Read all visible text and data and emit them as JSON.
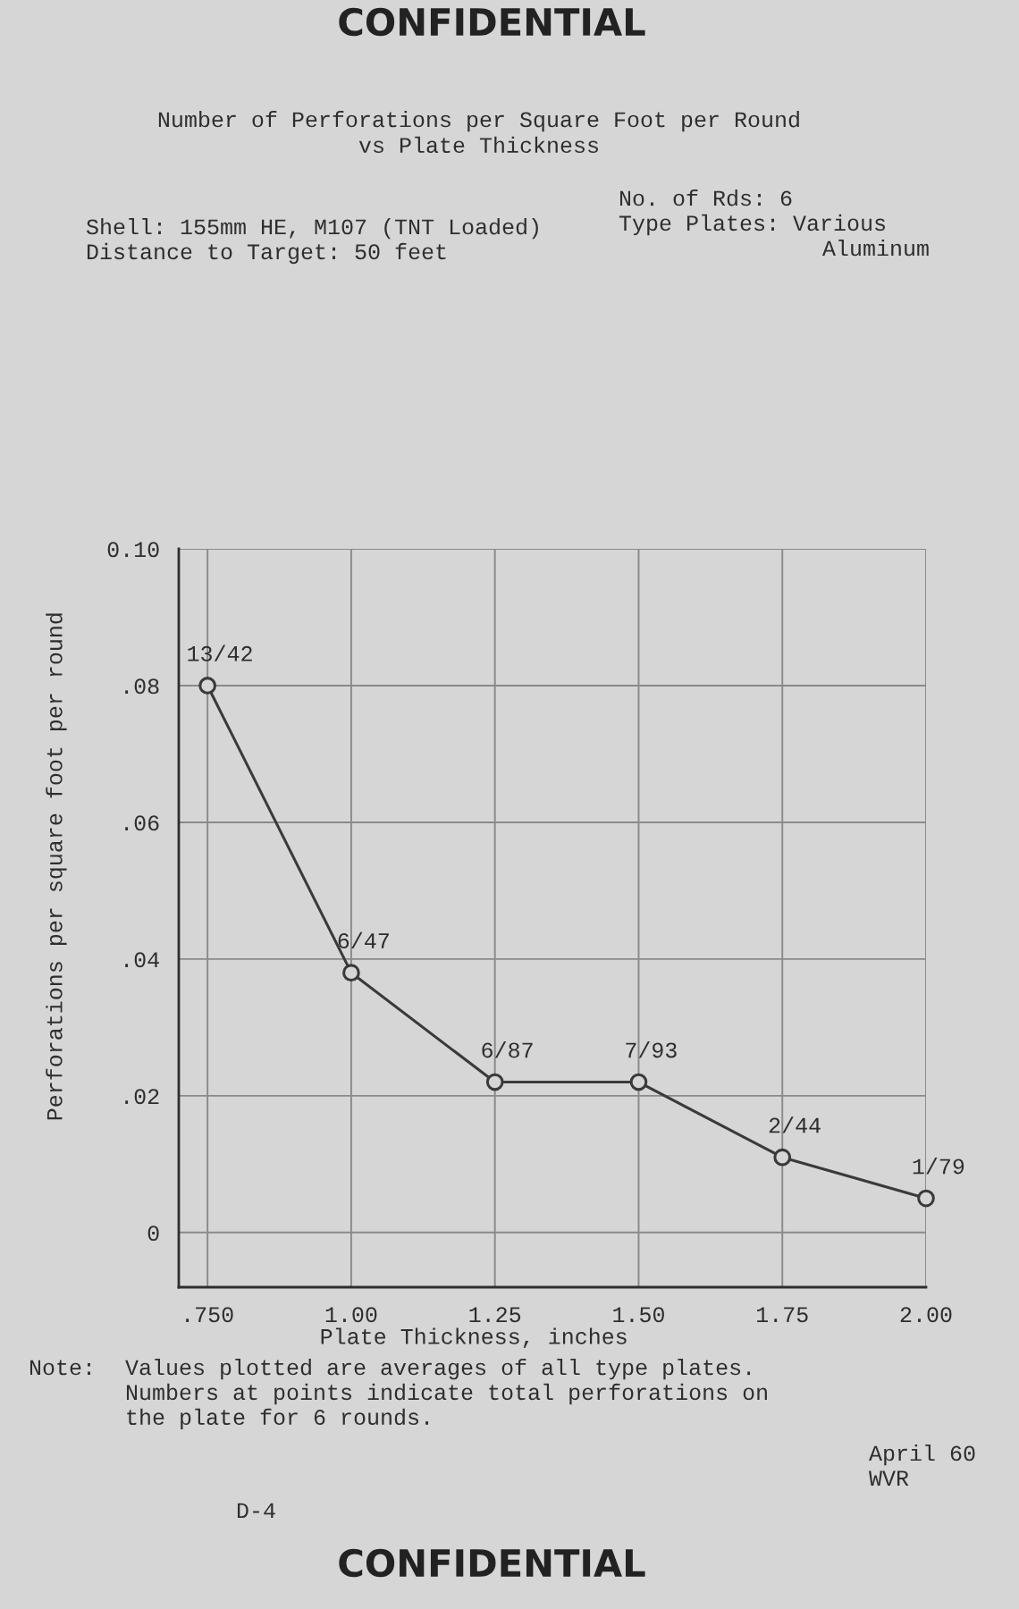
{
  "chart_data": {
    "type": "line",
    "title": "Number of Perforations per Square Foot per Round\nvs Plate Thickness",
    "xlabel": "Plate Thickness, inches",
    "ylabel": "Perforations per square foot per round",
    "x": [
      0.75,
      1.0,
      1.25,
      1.5,
      1.75,
      2.0
    ],
    "series": [
      {
        "color": "#3a3a3a",
        "values": [
          0.08,
          0.038,
          0.022,
          0.022,
          0.011,
          0.005
        ],
        "value_labels": [
          "13/42",
          "6/47",
          "6/87",
          "7/93",
          "2/44",
          "1/79"
        ]
      }
    ],
    "xlim": [
      0.7,
      2.0
    ],
    "xticks": [
      {
        "value": 0.75,
        "label": ".750"
      },
      {
        "value": 1.0,
        "label": "1.00"
      },
      {
        "value": 1.25,
        "label": "1.25"
      },
      {
        "value": 1.5,
        "label": "1.50"
      },
      {
        "value": 1.75,
        "label": "1.75"
      },
      {
        "value": 2.0,
        "label": "2.00"
      }
    ],
    "ylim": [
      -0.008,
      0.1
    ],
    "yticks": [
      0,
      {
        "value": 0.02,
        "label": ".02"
      },
      {
        "value": 0.04,
        "label": ".04"
      },
      {
        "value": 0.06,
        "label": ".06"
      },
      {
        "value": 0.08,
        "label": ".08"
      },
      {
        "value": 0.1,
        "label": "0.10"
      }
    ],
    "grid": true,
    "marker": "circle",
    "line_style": "solid",
    "annotations": [
      "CONFIDENTIAL",
      "Shell: 155mm HE, M107 (TNT Loaded)\nDistance to Target: 50 feet",
      "No. of Rds: 6\nType Plates: Various",
      "Aluminum",
      "Note:",
      "Values plotted are averages of all type plates.\nNumbers at points indicate total perforations on\nthe plate for 6 rounds.",
      "April 60\nWVR",
      "D-4",
      "CONFIDENTIAL"
    ]
  }
}
